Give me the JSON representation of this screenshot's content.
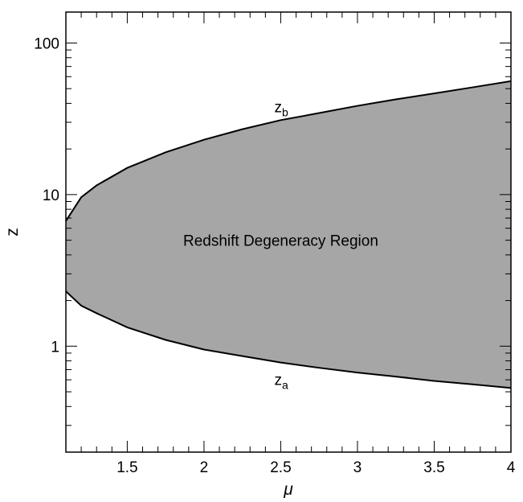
{
  "chart_data": {
    "type": "area",
    "title": "",
    "xlabel": "μ",
    "ylabel": "z",
    "xlim": [
      1.1,
      4.0
    ],
    "ylim": [
      0.2,
      160
    ],
    "yscale": "log",
    "grid": false,
    "x_ticks": [
      {
        "value": 1.5,
        "label": "1.5"
      },
      {
        "value": 2,
        "label": "2"
      },
      {
        "value": 2.5,
        "label": "2.5"
      },
      {
        "value": 3,
        "label": "3"
      },
      {
        "value": 3.5,
        "label": "3.5"
      },
      {
        "value": 4,
        "label": "4"
      }
    ],
    "y_ticks": [
      {
        "value": 1,
        "label": "1"
      },
      {
        "value": 10,
        "label": "10"
      },
      {
        "value": 100,
        "label": "100"
      }
    ],
    "fill_color": "#a6a6a6",
    "series": [
      {
        "name": "z_b",
        "label_main": "z",
        "label_sub": "b",
        "x": [
          1.1,
          1.2,
          1.3,
          1.5,
          1.75,
          2.0,
          2.25,
          2.5,
          2.75,
          3.0,
          3.25,
          3.5,
          3.75,
          4.0
        ],
        "y": [
          6.7,
          9.6,
          11.5,
          15.0,
          19.0,
          23.0,
          27.0,
          31.0,
          34.5,
          38.5,
          42.5,
          46.5,
          51.0,
          56.0
        ]
      },
      {
        "name": "z_a",
        "label_main": "z",
        "label_sub": "a",
        "x": [
          1.1,
          1.2,
          1.3,
          1.5,
          1.75,
          2.0,
          2.25,
          2.5,
          2.75,
          3.0,
          3.25,
          3.5,
          3.75,
          4.0
        ],
        "y": [
          2.3,
          1.85,
          1.65,
          1.33,
          1.1,
          0.95,
          0.86,
          0.78,
          0.72,
          0.67,
          0.63,
          0.59,
          0.56,
          0.53
        ]
      }
    ],
    "annotations": [
      {
        "text": "Redshift Degeneracy Region",
        "x": 2.5,
        "y": 4.6
      }
    ]
  }
}
